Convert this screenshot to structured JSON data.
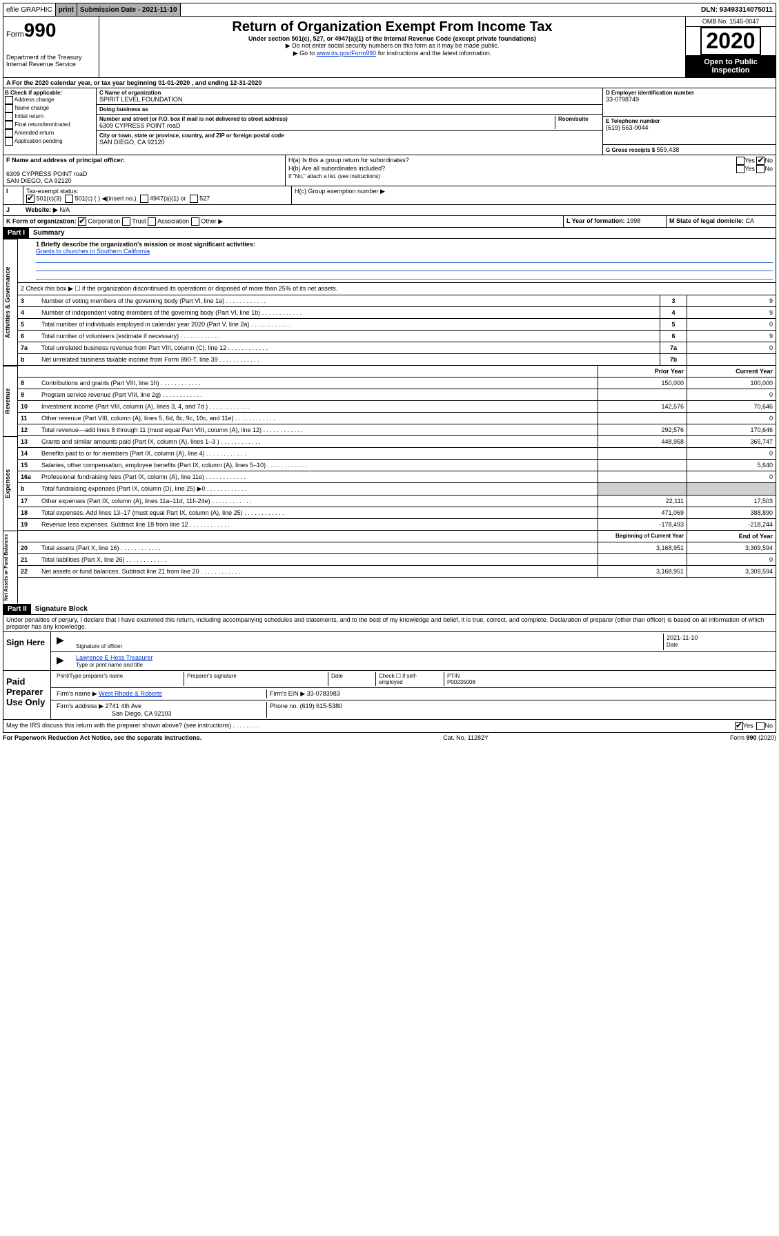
{
  "topbar": {
    "efile": "efile GRAPHIC",
    "print": "print",
    "sub_label": "Submission Date - 2021-11-10",
    "dln": "DLN: 93493314075011"
  },
  "header": {
    "form_pre": "Form",
    "form_num": "990",
    "dept": "Department of the Treasury",
    "irs": "Internal Revenue Service",
    "title": "Return of Organization Exempt From Income Tax",
    "sub1": "Under section 501(c), 527, or 4947(a)(1) of the Internal Revenue Code (except private foundations)",
    "sub2": "▶ Do not enter social security numbers on this form as it may be made public.",
    "sub3_pre": "▶ Go to ",
    "sub3_link": "www.irs.gov/Form990",
    "sub3_post": " for instructions and the latest information.",
    "omb": "OMB No. 1545-0047",
    "year": "2020",
    "open": "Open to Public Inspection"
  },
  "rowA": "A For the 2020 calendar year, or tax year beginning 01-01-2020     , and ending 12-31-2020",
  "boxB": {
    "label": "B Check if applicable:",
    "items": [
      "Address change",
      "Name change",
      "Initial return",
      "Final return/terminated",
      "Amended return",
      "Application pending"
    ]
  },
  "boxC": {
    "name_label": "C Name of organization",
    "name": "SPIRIT LEVEL FOUNDATION",
    "dba_label": "Doing business as",
    "dba": "",
    "addr_label": "Number and street (or P.O. box if mail is not delivered to street address)",
    "room_label": "Room/suite",
    "addr": "6309 CYPRESS POINT roaD",
    "city_label": "City or town, state or province, country, and ZIP or foreign postal code",
    "city": "SAN DIEGO, CA  92120"
  },
  "boxD": {
    "label": "D Employer identification number",
    "val": "33-0798749"
  },
  "boxE": {
    "label": "E Telephone number",
    "val": "(619) 563-0044"
  },
  "boxG": {
    "label": "G Gross receipts $",
    "val": "559,438"
  },
  "boxF": {
    "label": "F  Name and address of principal officer:",
    "addr1": "6309 CYPRESS POINT roaD",
    "addr2": "SAN DIEGO, CA  92120"
  },
  "boxH": {
    "a": "H(a)  Is this a group return for subordinates?",
    "b": "H(b)  Are all subordinates included?",
    "b_note": "If \"No,\" attach a list. (see instructions)",
    "c": "H(c)  Group exemption number ▶"
  },
  "rowI": {
    "label": "Tax-exempt status:",
    "opt1": "501(c)(3)",
    "opt2": "501(c) (  ) ◀(insert no.)",
    "opt3": "4947(a)(1) or",
    "opt4": "527"
  },
  "rowJ": {
    "label": "Website: ▶",
    "val": "N/A"
  },
  "rowK": {
    "label": "K Form of organization:",
    "opts": [
      "Corporation",
      "Trust",
      "Association",
      "Other ▶"
    ]
  },
  "rowL": {
    "label": "L Year of formation:",
    "val": "1998"
  },
  "rowM": {
    "label": "M State of legal domicile:",
    "val": "CA"
  },
  "part1": {
    "title": "Part I",
    "name": "Summary"
  },
  "summary": {
    "q1": "1  Briefly describe the organization's mission or most significant activities:",
    "q1_ans": "Grants to churches in Southern California",
    "q2": "2   Check this box ▶ ☐  if the organization discontinued its operations or disposed of more than 25% of its net assets.",
    "rows": [
      {
        "n": "3",
        "d": "Number of voting members of the governing body (Part VI, line 1a)",
        "k": "3",
        "v": "9"
      },
      {
        "n": "4",
        "d": "Number of independent voting members of the governing body (Part VI, line 1b)",
        "k": "4",
        "v": "9"
      },
      {
        "n": "5",
        "d": "Total number of individuals employed in calendar year 2020 (Part V, line 2a)",
        "k": "5",
        "v": "0"
      },
      {
        "n": "6",
        "d": "Total number of volunteers (estimate if necessary)",
        "k": "6",
        "v": "9"
      },
      {
        "n": "7a",
        "d": "Total unrelated business revenue from Part VIII, column (C), line 12",
        "k": "7a",
        "v": "0"
      },
      {
        "n": "b",
        "d": "Net unrelated business taxable income from Form 990-T, line 39",
        "k": "7b",
        "v": ""
      }
    ]
  },
  "cols": {
    "prior": "Prior Year",
    "current": "Current Year",
    "boy": "Beginning of Current Year",
    "eoy": "End of Year"
  },
  "revenue": [
    {
      "n": "8",
      "d": "Contributions and grants (Part VIII, line 1h)",
      "p": "150,000",
      "c": "100,000"
    },
    {
      "n": "9",
      "d": "Program service revenue (Part VIII, line 2g)",
      "p": "",
      "c": "0"
    },
    {
      "n": "10",
      "d": "Investment income (Part VIII, column (A), lines 3, 4, and 7d )",
      "p": "142,576",
      "c": "70,646"
    },
    {
      "n": "11",
      "d": "Other revenue (Part VIII, column (A), lines 5, 6d, 8c, 9c, 10c, and 11e)",
      "p": "",
      "c": "0"
    },
    {
      "n": "12",
      "d": "Total revenue—add lines 8 through 11 (must equal Part VIII, column (A), line 12)",
      "p": "292,576",
      "c": "170,646"
    }
  ],
  "expenses": [
    {
      "n": "13",
      "d": "Grants and similar amounts paid (Part IX, column (A), lines 1–3 )",
      "p": "448,958",
      "c": "365,747"
    },
    {
      "n": "14",
      "d": "Benefits paid to or for members (Part IX, column (A), line 4)",
      "p": "",
      "c": "0"
    },
    {
      "n": "15",
      "d": "Salaries, other compensation, employee benefits (Part IX, column (A), lines 5–10)",
      "p": "",
      "c": "5,640"
    },
    {
      "n": "16a",
      "d": "Professional fundraising fees (Part IX, column (A), line 11e)",
      "p": "",
      "c": "0"
    },
    {
      "n": "b",
      "d": "Total fundraising expenses (Part IX, column (D), line 25) ▶0",
      "p": "shaded",
      "c": "shaded"
    },
    {
      "n": "17",
      "d": "Other expenses (Part IX, column (A), lines 11a–11d, 11f–24e)",
      "p": "22,111",
      "c": "17,503"
    },
    {
      "n": "18",
      "d": "Total expenses. Add lines 13–17 (must equal Part IX, column (A), line 25)",
      "p": "471,069",
      "c": "388,890"
    },
    {
      "n": "19",
      "d": "Revenue less expenses. Subtract line 18 from line 12",
      "p": "-178,493",
      "c": "-218,244"
    }
  ],
  "netassets": [
    {
      "n": "20",
      "d": "Total assets (Part X, line 16)",
      "p": "3,168,951",
      "c": "3,309,594"
    },
    {
      "n": "21",
      "d": "Total liabilities (Part X, line 26)",
      "p": "",
      "c": "0"
    },
    {
      "n": "22",
      "d": "Net assets or fund balances. Subtract line 21 from line 20",
      "p": "3,168,951",
      "c": "3,309,594"
    }
  ],
  "vlabels": {
    "ag": "Activities & Governance",
    "rev": "Revenue",
    "exp": "Expenses",
    "na": "Net Assets or Fund Balances"
  },
  "part2": {
    "title": "Part II",
    "name": "Signature Block"
  },
  "perjury": "Under penalties of perjury, I declare that I have examined this return, including accompanying schedules and statements, and to the best of my knowledge and belief, it is true, correct, and complete. Declaration of preparer (other than officer) is based on all information of which preparer has any knowledge.",
  "sign": {
    "here": "Sign Here",
    "sig_label": "Signature of officer",
    "date": "2021-11-10",
    "date_label": "Date",
    "name": "Lawrence E Hess  Treasurer",
    "name_label": "Type or print name and title"
  },
  "paid": {
    "title": "Paid Preparer Use Only",
    "h1": "Print/Type preparer's name",
    "h2": "Preparer's signature",
    "h3": "Date",
    "h4": "Check ☐ if self-employed",
    "h5": "PTIN",
    "ptin": "P00235008",
    "firm_label": "Firm's name    ▶",
    "firm": "West Rhode & Roberts",
    "ein_label": "Firm's EIN ▶",
    "ein": "33-0783983",
    "addr_label": "Firm's address ▶",
    "addr1": "2741 4th Ave",
    "addr2": "San Diego, CA  92103",
    "phone_label": "Phone no.",
    "phone": "(619) 615-5380"
  },
  "discuss": "May the IRS discuss this return with the preparer shown above? (see instructions)",
  "footer": {
    "l": "For Paperwork Reduction Act Notice, see the separate instructions.",
    "c": "Cat. No. 11282Y",
    "r": "Form 990 (2020)"
  }
}
